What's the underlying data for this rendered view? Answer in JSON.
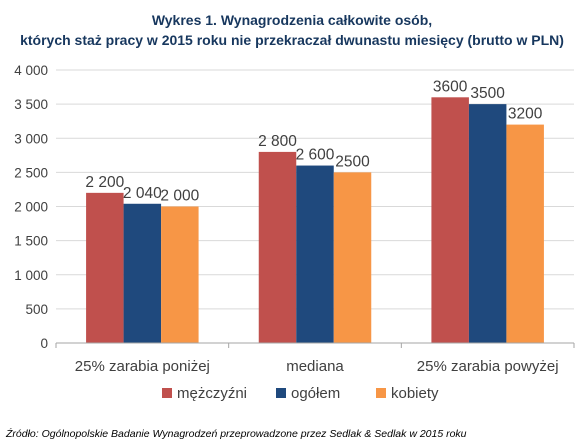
{
  "chart_data": {
    "type": "bar",
    "title_line1": "Wykres 1. Wynagrodzenia całkowite osób,",
    "title_line2": "których staż pracy w 2015 roku nie przekraczał dwunastu miesięcy (brutto w PLN)",
    "categories": [
      "25% zarabia poniżej",
      "mediana",
      "25% zarabia powyżej"
    ],
    "series": [
      {
        "name": "mężczyźni",
        "color": "#c0504d",
        "values": [
          2200,
          2800,
          3600
        ],
        "labels": [
          "2 200",
          "2 800",
          "3600"
        ]
      },
      {
        "name": "ogółem",
        "color": "#1f497d",
        "values": [
          2040,
          2600,
          3500
        ],
        "labels": [
          "2 040",
          "2 600",
          "3500"
        ]
      },
      {
        "name": "kobiety",
        "color": "#f79646",
        "values": [
          2000,
          2500,
          3200
        ],
        "labels": [
          "2 000",
          "2500",
          "3200"
        ]
      }
    ],
    "ylim": [
      0,
      4000
    ],
    "yticks": [
      0,
      500,
      1000,
      1500,
      2000,
      2500,
      3000,
      3500,
      4000
    ],
    "ytick_labels": [
      "0",
      "500",
      "1 000",
      "1 500",
      "2 000",
      "2 500",
      "3 000",
      "3 500",
      "4 000"
    ],
    "grid": true,
    "legend_position": "bottom",
    "source": "Źródło: Ogólnopolskie Badanie Wynagrodzeń przeprowadzone  przez Sedlak & Sedlak w 2015 roku"
  }
}
